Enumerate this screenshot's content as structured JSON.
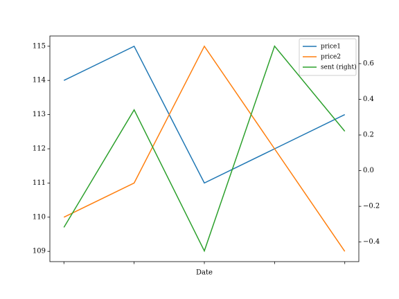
{
  "chart_data": {
    "type": "line",
    "x_label": "Date",
    "categories": [
      null,
      null,
      null,
      null,
      null
    ],
    "series": [
      {
        "name": "price1",
        "color": "#1f77b4",
        "values": [
          114,
          115,
          111,
          112,
          113
        ]
      },
      {
        "name": "price2",
        "color": "#ff7f0e",
        "values": [
          110,
          111,
          115,
          112,
          109
        ]
      },
      {
        "name": "sent (right)",
        "color": "#2ca02c",
        "axis": "y2",
        "values": [
          -0.318,
          0.341,
          -0.45,
          0.698,
          0.221
        ]
      }
    ],
    "ylim": [
      108.7,
      115.3
    ],
    "yticks": [
      109,
      110,
      111,
      112,
      113,
      114,
      115
    ],
    "y2lim": [
      -0.51,
      0.755
    ],
    "y2ticks": [
      {
        "value": -0.4,
        "label": "−0.4"
      },
      {
        "value": -0.2,
        "label": "−0.2"
      },
      {
        "value": 0,
        "label": "0.0"
      },
      {
        "value": 0.2,
        "label": "0.2"
      },
      {
        "value": 0.4,
        "label": "0.4"
      },
      {
        "value": 0.6,
        "label": "0.6"
      }
    ],
    "legend": "upper right"
  }
}
